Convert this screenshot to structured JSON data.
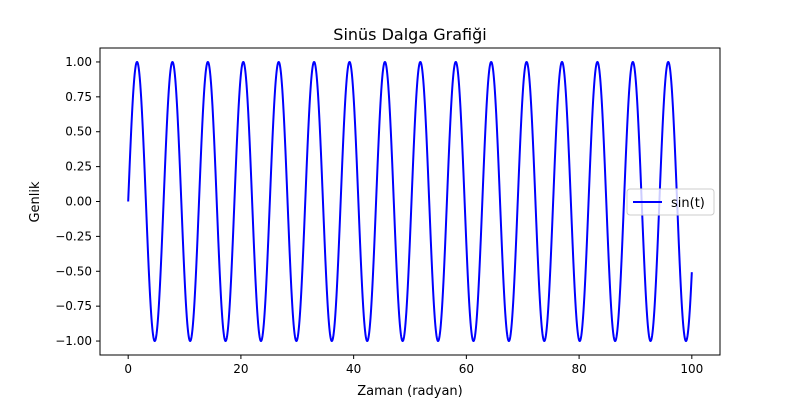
{
  "chart_data": {
    "type": "line",
    "title": "Sinüs Dalga Grafiği",
    "xlabel": "Zaman (radyan)",
    "ylabel": "Genlik",
    "xlim": [
      -5,
      105
    ],
    "ylim": [
      -1.1,
      1.1
    ],
    "x_ticks": [
      0,
      20,
      40,
      60,
      80,
      100
    ],
    "x_tick_labels": [
      "0",
      "20",
      "40",
      "60",
      "80",
      "100"
    ],
    "y_ticks": [
      -1.0,
      -0.75,
      -0.5,
      -0.25,
      0.0,
      0.25,
      0.5,
      0.75,
      1.0
    ],
    "y_tick_labels": [
      "−1.00",
      "−0.75",
      "−0.50",
      "−0.25",
      "0.00",
      "0.25",
      "0.50",
      "0.75",
      "1.00"
    ],
    "grid": false,
    "legend_position": "center-right",
    "series": [
      {
        "name": "sin(t)",
        "function": "sin(t)",
        "x_range": [
          0,
          100
        ],
        "color": "#0000ff"
      }
    ]
  }
}
